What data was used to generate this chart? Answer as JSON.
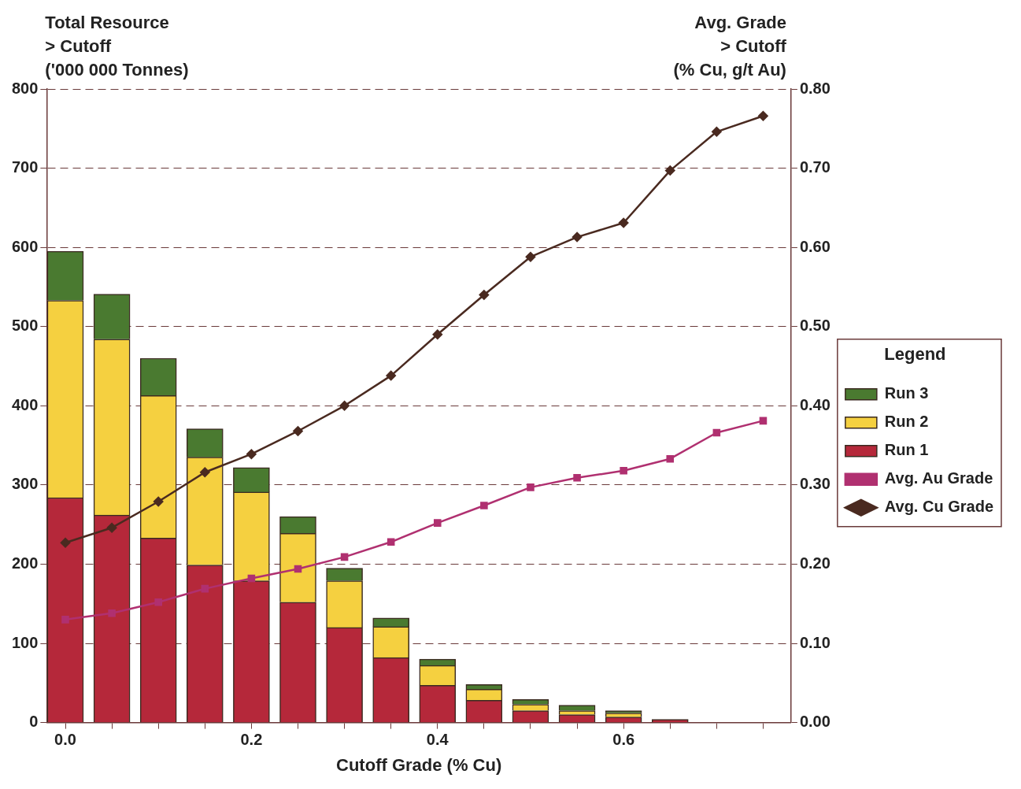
{
  "chart_data": {
    "type": "bar",
    "stacked": true,
    "ylabel": "Total Resource\n> Cutoff\n('000 000 Tonnes)",
    "y2label": "Avg. Grade\n> Cutoff\n(% Cu, g/t Au)",
    "xlabel": "Cutoff Grade (% Cu)",
    "legend": "right",
    "legend_title": "Legend",
    "grid": "y",
    "x": [
      0,
      0.05,
      0.1,
      0.15,
      0.2,
      0.25,
      0.3,
      0.35,
      0.4,
      0.45,
      0.5,
      0.55,
      0.6,
      0.65
    ],
    "xlim": [
      -0.02,
      0.78
    ],
    "xticks": [
      {
        "value": 0,
        "label": "0.0"
      },
      {
        "value": 0.05,
        "label": null
      },
      {
        "value": 0.1,
        "label": null
      },
      {
        "value": 0.15,
        "label": null
      },
      {
        "value": 0.2,
        "label": "0.2"
      },
      {
        "value": 0.25,
        "label": null
      },
      {
        "value": 0.3,
        "label": null
      },
      {
        "value": 0.35,
        "label": null
      },
      {
        "value": 0.4,
        "label": "0.4"
      },
      {
        "value": 0.45,
        "label": null
      },
      {
        "value": 0.5,
        "label": null
      },
      {
        "value": 0.55,
        "label": null
      },
      {
        "value": 0.6,
        "label": "0.6"
      },
      {
        "value": 0.65,
        "label": null
      },
      {
        "value": 0.7,
        "label": null
      },
      {
        "value": 0.75,
        "label": null
      }
    ],
    "ylim": [
      0,
      800
    ],
    "yticks": [
      0,
      100,
      200,
      300,
      400,
      500,
      600,
      700,
      800
    ],
    "y2lim": [
      0,
      0.8
    ],
    "y2ticks": [
      {
        "value": 0,
        "label": "0.00"
      },
      {
        "value": 0.1,
        "label": "0.10"
      },
      {
        "value": 0.2,
        "label": "0.20"
      },
      {
        "value": 0.3,
        "label": "0.30"
      },
      {
        "value": 0.4,
        "label": "0.40"
      },
      {
        "value": 0.5,
        "label": "0.50"
      },
      {
        "value": 0.6,
        "label": "0.60"
      },
      {
        "value": 0.7,
        "label": "0.70"
      },
      {
        "value": 0.8,
        "label": "0.80"
      }
    ],
    "series": [
      {
        "name": "Run 1",
        "color": "#b5283a",
        "values": [
          284,
          262,
          233,
          199,
          179,
          152,
          120,
          82,
          47,
          28,
          15,
          10,
          7,
          4
        ]
      },
      {
        "name": "Run 2",
        "color": "#f5d040",
        "values": [
          249,
          222,
          180,
          136,
          112,
          87,
          59,
          39,
          25,
          14,
          8,
          5,
          5,
          null
        ]
      },
      {
        "name": "Run 3",
        "color": "#4a7a30",
        "values": [
          62,
          57,
          47,
          36,
          31,
          21,
          16,
          11,
          8,
          6,
          6,
          7,
          3,
          null
        ]
      },
      {
        "name": "Avg. Au Grade",
        "type": "line",
        "axis": "y2",
        "marker": "square",
        "color": "#b03070",
        "x": [
          0,
          0.05,
          0.1,
          0.15,
          0.2,
          0.25,
          0.3,
          0.35,
          0.4,
          0.45,
          0.5,
          0.55,
          0.6,
          0.65,
          0.7,
          0.75
        ],
        "values": [
          0.13,
          0.138,
          0.152,
          0.169,
          0.182,
          0.194,
          0.209,
          0.228,
          0.252,
          0.274,
          0.297,
          0.309,
          0.318,
          0.333,
          0.366,
          0.381
        ]
      },
      {
        "name": "Avg. Cu Grade",
        "type": "line",
        "axis": "y2",
        "marker": "diamond",
        "color": "#4a2a20",
        "x": [
          0,
          0.05,
          0.1,
          0.15,
          0.2,
          0.25,
          0.3,
          0.35,
          0.4,
          0.45,
          0.5,
          0.55,
          0.6,
          0.65,
          0.7,
          0.75
        ],
        "values": [
          0.227,
          0.246,
          0.279,
          0.316,
          0.339,
          0.368,
          0.4,
          0.438,
          0.49,
          0.54,
          0.588,
          0.613,
          0.631,
          0.697,
          0.746,
          0.766
        ]
      }
    ]
  }
}
